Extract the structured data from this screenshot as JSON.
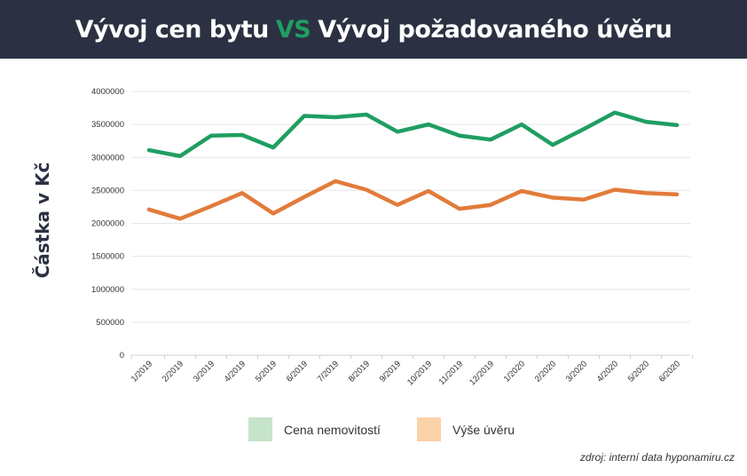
{
  "header": {
    "title_part1": "Vývoj cen bytu",
    "title_vs": "VS",
    "title_part2": "Vývoj požadovaného úvěru"
  },
  "chart_data": {
    "type": "line",
    "title": "Vývoj cen bytu VS Vývoj požadovaného úvěru",
    "ylabel": "Částka v Kč",
    "xlabel": "",
    "ylim": [
      0,
      4000000
    ],
    "yticks": [
      "0",
      "500000",
      "1000000",
      "1500000",
      "2000000",
      "2500000",
      "3000000",
      "3500000",
      "4000000"
    ],
    "categories": [
      "1/2019",
      "2/2019",
      "3/2019",
      "4/2019",
      "5/2019",
      "6/2019",
      "7/2019",
      "8/2019",
      "9/2019",
      "10/2019",
      "11/2019",
      "12/2019",
      "1/2020",
      "2/2020",
      "3/2020",
      "4/2020",
      "5/2020",
      "6/2020"
    ],
    "series": [
      {
        "name": "Cena nemovitostí",
        "color": "#1f9e62",
        "legend_color": "#c6e4c9",
        "values": [
          3110000,
          3020000,
          3330000,
          3340000,
          3150000,
          3630000,
          3610000,
          3650000,
          3390000,
          3500000,
          3330000,
          3270000,
          3500000,
          3190000,
          3430000,
          3680000,
          3540000,
          3490000
        ]
      },
      {
        "name": "Výše úvěru",
        "color": "#e27b3b",
        "legend_color": "#fcd2ab",
        "values": [
          2210000,
          2070000,
          2260000,
          2460000,
          2150000,
          2400000,
          2640000,
          2510000,
          2280000,
          2490000,
          2220000,
          2280000,
          2490000,
          2390000,
          2360000,
          2510000,
          2460000,
          2440000
        ]
      }
    ],
    "grid": true,
    "legend_position": "bottom"
  },
  "source": "zdroj: interní data hyponamiru.cz"
}
